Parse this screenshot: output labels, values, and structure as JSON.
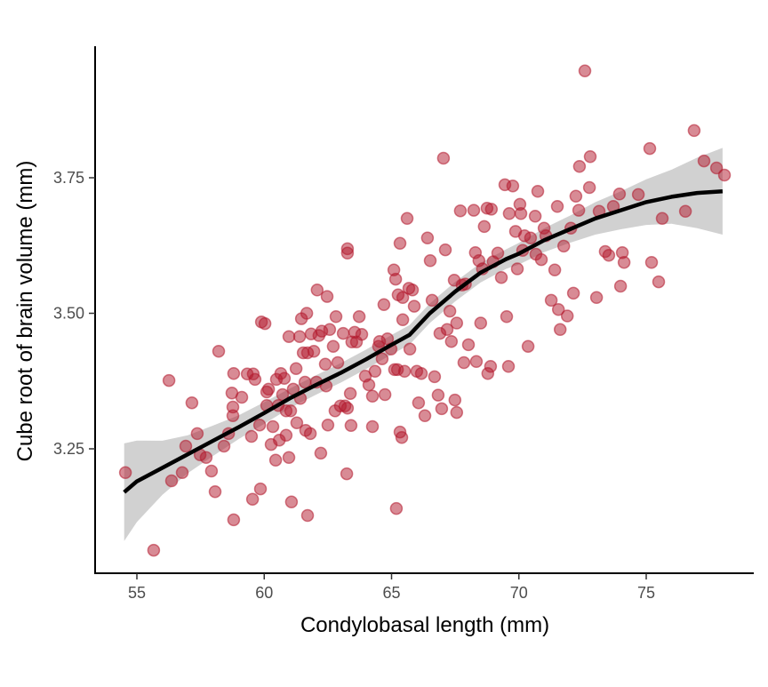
{
  "chart_data": {
    "type": "scatter",
    "xlabel": "Condylobasal length (mm)",
    "ylabel": "Cube root of brain volume (mm)",
    "xlim": [
      53.8,
      78.6
    ],
    "ylim": [
      3.0,
      3.98
    ],
    "xticks": [
      55,
      60,
      65,
      70,
      75
    ],
    "xtick_labels": [
      "55",
      "60",
      "65",
      "70",
      "75"
    ],
    "yticks": [
      3.25,
      3.5,
      3.75
    ],
    "ytick_labels": [
      "3.25",
      "3.50",
      "3.75"
    ],
    "grid": false,
    "point_color": "#B2182B",
    "smooth_color": "#000000",
    "band_color": "#CCCCCC",
    "points": [
      [
        54.55,
        3.206
      ],
      [
        55.66,
        3.063
      ],
      [
        56.26,
        3.376
      ],
      [
        56.36,
        3.191
      ],
      [
        56.78,
        3.206
      ],
      [
        57.16,
        3.335
      ],
      [
        56.92,
        3.255
      ],
      [
        57.37,
        3.278
      ],
      [
        57.48,
        3.239
      ],
      [
        57.72,
        3.234
      ],
      [
        57.93,
        3.209
      ],
      [
        58.07,
        3.171
      ],
      [
        58.21,
        3.43
      ],
      [
        58.42,
        3.255
      ],
      [
        58.6,
        3.278
      ],
      [
        58.73,
        3.353
      ],
      [
        58.77,
        3.327
      ],
      [
        58.8,
        3.389
      ],
      [
        58.8,
        3.119
      ],
      [
        58.77,
        3.311
      ],
      [
        59.12,
        3.345
      ],
      [
        59.33,
        3.388
      ],
      [
        59.5,
        3.273
      ],
      [
        59.57,
        3.388
      ],
      [
        59.54,
        3.157
      ],
      [
        59.64,
        3.378
      ],
      [
        59.82,
        3.294
      ],
      [
        59.85,
        3.176
      ],
      [
        59.89,
        3.484
      ],
      [
        60.03,
        3.481
      ],
      [
        60.1,
        3.355
      ],
      [
        60.1,
        3.33
      ],
      [
        60.17,
        3.36
      ],
      [
        60.27,
        3.258
      ],
      [
        60.34,
        3.291
      ],
      [
        60.45,
        3.229
      ],
      [
        60.48,
        3.378
      ],
      [
        60.55,
        3.33
      ],
      [
        60.59,
        3.266
      ],
      [
        60.65,
        3.389
      ],
      [
        60.72,
        3.35
      ],
      [
        60.79,
        3.38
      ],
      [
        60.86,
        3.32
      ],
      [
        60.86,
        3.275
      ],
      [
        60.97,
        3.234
      ],
      [
        60.97,
        3.457
      ],
      [
        61.04,
        3.32
      ],
      [
        61.07,
        3.152
      ],
      [
        61.14,
        3.36
      ],
      [
        61.25,
        3.398
      ],
      [
        61.28,
        3.298
      ],
      [
        61.39,
        3.457
      ],
      [
        61.42,
        3.343
      ],
      [
        61.46,
        3.49
      ],
      [
        61.53,
        3.427
      ],
      [
        61.6,
        3.373
      ],
      [
        61.63,
        3.284
      ],
      [
        61.67,
        3.5
      ],
      [
        61.7,
        3.127
      ],
      [
        61.7,
        3.427
      ],
      [
        61.81,
        3.278
      ],
      [
        61.84,
        3.462
      ],
      [
        61.95,
        3.43
      ],
      [
        62.05,
        3.373
      ],
      [
        62.08,
        3.543
      ],
      [
        62.15,
        3.459
      ],
      [
        62.22,
        3.242
      ],
      [
        62.26,
        3.467
      ],
      [
        62.4,
        3.406
      ],
      [
        62.43,
        3.366
      ],
      [
        62.5,
        3.294
      ],
      [
        62.47,
        3.531
      ],
      [
        62.57,
        3.47
      ],
      [
        62.71,
        3.439
      ],
      [
        62.78,
        3.32
      ],
      [
        62.82,
        3.494
      ],
      [
        62.89,
        3.409
      ],
      [
        62.99,
        3.329
      ],
      [
        63.1,
        3.463
      ],
      [
        63.17,
        3.329
      ],
      [
        63.24,
        3.204
      ],
      [
        63.27,
        3.619
      ],
      [
        63.27,
        3.611
      ],
      [
        63.27,
        3.325
      ],
      [
        63.38,
        3.352
      ],
      [
        63.41,
        3.293
      ],
      [
        63.44,
        3.447
      ],
      [
        63.55,
        3.465
      ],
      [
        63.62,
        3.447
      ],
      [
        63.73,
        3.494
      ],
      [
        63.83,
        3.461
      ],
      [
        63.97,
        3.384
      ],
      [
        64.11,
        3.368
      ],
      [
        64.25,
        3.291
      ],
      [
        64.25,
        3.347
      ],
      [
        64.35,
        3.393
      ],
      [
        64.49,
        3.439
      ],
      [
        64.53,
        3.448
      ],
      [
        64.63,
        3.416
      ],
      [
        64.7,
        3.516
      ],
      [
        64.74,
        3.35
      ],
      [
        64.84,
        3.453
      ],
      [
        64.98,
        3.434
      ],
      [
        65.09,
        3.58
      ],
      [
        65.12,
        3.396
      ],
      [
        65.16,
        3.563
      ],
      [
        65.19,
        3.14
      ],
      [
        65.23,
        3.396
      ],
      [
        65.26,
        3.534
      ],
      [
        65.33,
        3.281
      ],
      [
        65.33,
        3.629
      ],
      [
        65.4,
        3.271
      ],
      [
        65.44,
        3.529
      ],
      [
        65.51,
        3.393
      ],
      [
        65.44,
        3.488
      ],
      [
        65.61,
        3.675
      ],
      [
        65.68,
        3.546
      ],
      [
        65.72,
        3.434
      ],
      [
        65.82,
        3.543
      ],
      [
        65.89,
        3.513
      ],
      [
        65.99,
        3.393
      ],
      [
        66.06,
        3.335
      ],
      [
        66.17,
        3.389
      ],
      [
        66.31,
        3.311
      ],
      [
        66.41,
        3.639
      ],
      [
        66.52,
        3.597
      ],
      [
        66.59,
        3.524
      ],
      [
        66.69,
        3.383
      ],
      [
        66.83,
        3.349
      ],
      [
        66.9,
        3.463
      ],
      [
        66.97,
        3.324
      ],
      [
        67.04,
        3.786
      ],
      [
        67.11,
        3.617
      ],
      [
        67.18,
        3.47
      ],
      [
        67.29,
        3.504
      ],
      [
        67.35,
        3.448
      ],
      [
        67.46,
        3.561
      ],
      [
        67.49,
        3.34
      ],
      [
        67.56,
        3.317
      ],
      [
        67.56,
        3.482
      ],
      [
        67.7,
        3.689
      ],
      [
        67.77,
        3.552
      ],
      [
        67.84,
        3.409
      ],
      [
        67.9,
        3.554
      ],
      [
        68.02,
        3.442
      ],
      [
        68.23,
        3.69
      ],
      [
        68.29,
        3.612
      ],
      [
        68.33,
        3.411
      ],
      [
        68.43,
        3.597
      ],
      [
        68.5,
        3.482
      ],
      [
        68.57,
        3.582
      ],
      [
        68.64,
        3.66
      ],
      [
        68.75,
        3.694
      ],
      [
        68.78,
        3.389
      ],
      [
        68.89,
        3.402
      ],
      [
        68.92,
        3.692
      ],
      [
        68.99,
        3.595
      ],
      [
        69.17,
        3.611
      ],
      [
        69.31,
        3.566
      ],
      [
        69.45,
        3.737
      ],
      [
        69.52,
        3.494
      ],
      [
        69.59,
        3.402
      ],
      [
        69.62,
        3.684
      ],
      [
        69.76,
        3.735
      ],
      [
        69.87,
        3.651
      ],
      [
        69.94,
        3.582
      ],
      [
        70.04,
        3.701
      ],
      [
        70.08,
        3.684
      ],
      [
        70.15,
        3.616
      ],
      [
        70.22,
        3.643
      ],
      [
        70.36,
        3.439
      ],
      [
        70.46,
        3.639
      ],
      [
        70.64,
        3.679
      ],
      [
        70.67,
        3.609
      ],
      [
        70.74,
        3.725
      ],
      [
        70.88,
        3.599
      ],
      [
        70.99,
        3.657
      ],
      [
        71.06,
        3.643
      ],
      [
        71.27,
        3.524
      ],
      [
        71.41,
        3.58
      ],
      [
        71.51,
        3.697
      ],
      [
        71.55,
        3.507
      ],
      [
        71.62,
        3.47
      ],
      [
        71.76,
        3.624
      ],
      [
        71.9,
        3.495
      ],
      [
        72.04,
        3.657
      ],
      [
        72.14,
        3.537
      ],
      [
        72.24,
        3.716
      ],
      [
        72.35,
        3.69
      ],
      [
        72.38,
        3.771
      ],
      [
        72.59,
        3.947
      ],
      [
        72.8,
        3.789
      ],
      [
        72.77,
        3.732
      ],
      [
        73.05,
        3.529
      ],
      [
        73.15,
        3.688
      ],
      [
        73.39,
        3.614
      ],
      [
        73.53,
        3.607
      ],
      [
        73.71,
        3.697
      ],
      [
        73.95,
        3.72
      ],
      [
        73.99,
        3.55
      ],
      [
        74.06,
        3.612
      ],
      [
        74.13,
        3.594
      ],
      [
        74.69,
        3.719
      ],
      [
        75.14,
        3.804
      ],
      [
        75.21,
        3.594
      ],
      [
        75.49,
        3.558
      ],
      [
        75.63,
        3.675
      ],
      [
        76.54,
        3.688
      ],
      [
        76.88,
        3.837
      ],
      [
        77.27,
        3.781
      ],
      [
        77.76,
        3.768
      ],
      [
        78.07,
        3.755
      ]
    ],
    "smooth": {
      "x": [
        54.5,
        55,
        56,
        57,
        58,
        59,
        60,
        61,
        62,
        63,
        64,
        65,
        65.7,
        66.5,
        67.5,
        68.5,
        69.5,
        70,
        71,
        72,
        73,
        74,
        75,
        76,
        77,
        78
      ],
      "y": [
        3.17,
        3.19,
        3.215,
        3.24,
        3.265,
        3.29,
        3.316,
        3.343,
        3.367,
        3.39,
        3.415,
        3.442,
        3.46,
        3.5,
        3.54,
        3.575,
        3.6,
        3.61,
        3.635,
        3.655,
        3.675,
        3.69,
        3.705,
        3.715,
        3.722,
        3.725
      ],
      "ci_halfwidth": [
        0.09,
        0.075,
        0.05,
        0.035,
        0.028,
        0.022,
        0.02,
        0.018,
        0.018,
        0.018,
        0.018,
        0.018,
        0.018,
        0.018,
        0.018,
        0.018,
        0.018,
        0.02,
        0.022,
        0.025,
        0.03,
        0.035,
        0.042,
        0.05,
        0.065,
        0.08
      ]
    }
  }
}
